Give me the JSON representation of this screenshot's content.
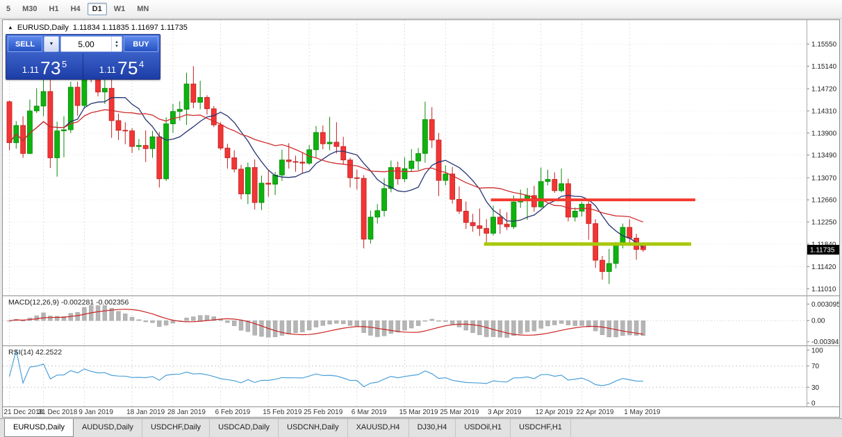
{
  "toolbar": {
    "timeframes": [
      {
        "label": "5",
        "active": false
      },
      {
        "label": "M30",
        "active": false
      },
      {
        "label": "H1",
        "active": false
      },
      {
        "label": "H4",
        "active": false
      },
      {
        "label": "D1",
        "active": true
      },
      {
        "label": "W1",
        "active": false
      },
      {
        "label": "MN",
        "active": false
      }
    ]
  },
  "chart": {
    "collapse_icon": "▲",
    "symbol_period": "EURUSD,Daily",
    "ohlc_text": "1.11834 1.11835 1.11697 1.11735"
  },
  "trade_panel": {
    "sell_label": "SELL",
    "buy_label": "BUY",
    "volume": "5.00",
    "dropdown_icon": "▼",
    "spinner_up_icon": "▲",
    "spinner_down_icon": "▼",
    "sell_price": {
      "prefix": "1.11",
      "big": "73",
      "sup": "5"
    },
    "buy_price": {
      "prefix": "1.11",
      "big": "75",
      "sup": "4"
    }
  },
  "price_axis": {
    "labels": [
      "1.15550",
      "1.15140",
      "1.14720",
      "1.14310",
      "1.13900",
      "1.13490",
      "1.13070",
      "1.12660",
      "1.12250",
      "1.11840",
      "1.11420",
      "1.11010"
    ],
    "current": "1.11735"
  },
  "macd": {
    "label": "MACD(12,26,9) -0.002281 -0.002356",
    "axis": [
      "0.003095",
      "0.00",
      "-0.003947"
    ]
  },
  "rsi": {
    "label": "RSI(14) 42.2522",
    "axis": [
      "100",
      "70",
      "30",
      "0"
    ]
  },
  "tabs": [
    {
      "label": "EURUSD,Daily",
      "active": true
    },
    {
      "label": "AUDUSD,Daily",
      "active": false
    },
    {
      "label": "USDCHF,Daily",
      "active": false
    },
    {
      "label": "USDCAD,Daily",
      "active": false
    },
    {
      "label": "USDCNH,Daily",
      "active": false
    },
    {
      "label": "XAUUSD,H4",
      "active": false
    },
    {
      "label": "DJ30,H4",
      "active": false
    },
    {
      "label": "USDOil,H1",
      "active": false
    },
    {
      "label": "USDCHF,H1",
      "active": false
    }
  ],
  "chart_data": {
    "type": "candlestick",
    "symbol": "EURUSD",
    "timeframe": "Daily",
    "price_range": [
      1.1095,
      1.1593
    ],
    "macd_range": [
      -0.0045,
      0.0043
    ],
    "rsi_range": [
      -5,
      105
    ],
    "style": {
      "up": "#0fb20f",
      "up_stroke": "#0a8a0a",
      "down": "#f23535",
      "down_stroke": "#c11f1f",
      "grid": "#dedede",
      "macd_bar": "#b5b5b5",
      "macd_signal": "#cc2222",
      "rsi_line": "#4aa0d8",
      "tag_bg": "#000000",
      "tag_text": "#ffffff"
    },
    "ma": [
      {
        "period": 9,
        "color": "#253271"
      },
      {
        "period": 18,
        "color": "#cf2b2b"
      }
    ],
    "macd_params": {
      "fast": 12,
      "slow": 26,
      "signal": 9
    },
    "rsi_params": {
      "period": 14,
      "levels": [
        70,
        30
      ]
    },
    "hlines": [
      {
        "price": 1.1266,
        "color": "#f23b2e",
        "thickness": 4,
        "start_index": 71,
        "end_index": 101
      },
      {
        "price": 1.1184,
        "color": "#a8c80a",
        "thickness": 5,
        "start_index": 70,
        "end_index": 100.4
      }
    ],
    "date_axis": {
      "labels": [
        "21 Dec 2018",
        "31 Dec 2018",
        "9 Jan 2019",
        "18 Jan 2019",
        "28 Jan 2019",
        "6 Feb 2019",
        "15 Feb 2019",
        "25 Feb 2019",
        "6 Mar 2019",
        "15 Mar 2019",
        "25 Mar 2019",
        "3 Apr 2019",
        "12 Apr 2019",
        "22 Apr 2019",
        "1 May 2019"
      ],
      "candle_indices": [
        0,
        5,
        11,
        18,
        24,
        31,
        38,
        44,
        51,
        58,
        64,
        71,
        78,
        84,
        91
      ]
    },
    "candles": [
      [
        1.1448,
        1.145,
        1.1358,
        1.1372
      ],
      [
        1.1372,
        1.1412,
        1.1361,
        1.1404
      ],
      [
        1.1404,
        1.1421,
        1.1344,
        1.1352
      ],
      [
        1.1352,
        1.1452,
        1.1351,
        1.1431
      ],
      [
        1.1431,
        1.1473,
        1.1427,
        1.144
      ],
      [
        1.144,
        1.1497,
        1.1421,
        1.1467
      ],
      [
        1.1467,
        1.1497,
        1.1325,
        1.1344
      ],
      [
        1.1344,
        1.1411,
        1.1309,
        1.1394
      ],
      [
        1.1394,
        1.1421,
        1.1345,
        1.1396
      ],
      [
        1.1396,
        1.1485,
        1.139,
        1.1475
      ],
      [
        1.1475,
        1.1485,
        1.1422,
        1.1441
      ],
      [
        1.1441,
        1.157,
        1.1435,
        1.1544
      ],
      [
        1.1544,
        1.1553,
        1.1484,
        1.1499
      ],
      [
        1.1499,
        1.1541,
        1.1458,
        1.1466
      ],
      [
        1.1466,
        1.1491,
        1.1444,
        1.1473
      ],
      [
        1.1473,
        1.149,
        1.1381,
        1.1413
      ],
      [
        1.1413,
        1.1426,
        1.1377,
        1.1395
      ],
      [
        1.1395,
        1.141,
        1.1369,
        1.1394
      ],
      [
        1.1394,
        1.1399,
        1.1353,
        1.1365
      ],
      [
        1.1365,
        1.1379,
        1.1358,
        1.1367
      ],
      [
        1.1367,
        1.1395,
        1.1336,
        1.1361
      ],
      [
        1.1361,
        1.1394,
        1.1344,
        1.1383
      ],
      [
        1.1383,
        1.1392,
        1.1289,
        1.1305
      ],
      [
        1.1305,
        1.1419,
        1.1301,
        1.1407
      ],
      [
        1.1407,
        1.1444,
        1.139,
        1.143
      ],
      [
        1.143,
        1.1449,
        1.1413,
        1.1434
      ],
      [
        1.1434,
        1.1502,
        1.1405,
        1.1481
      ],
      [
        1.1481,
        1.1514,
        1.1436,
        1.1447
      ],
      [
        1.1447,
        1.1487,
        1.1434,
        1.1456
      ],
      [
        1.1456,
        1.146,
        1.1424,
        1.1435
      ],
      [
        1.1435,
        1.144,
        1.1401,
        1.1405
      ],
      [
        1.1405,
        1.141,
        1.1358,
        1.1362
      ],
      [
        1.1362,
        1.137,
        1.1324,
        1.1344
      ],
      [
        1.1344,
        1.1358,
        1.1317,
        1.1323
      ],
      [
        1.1323,
        1.1331,
        1.1267,
        1.1277
      ],
      [
        1.1277,
        1.1335,
        1.1258,
        1.1326
      ],
      [
        1.1326,
        1.1341,
        1.1248,
        1.1261
      ],
      [
        1.1261,
        1.1311,
        1.1247,
        1.1297
      ],
      [
        1.1297,
        1.132,
        1.1272,
        1.1295
      ],
      [
        1.1295,
        1.1318,
        1.1275,
        1.1312
      ],
      [
        1.1312,
        1.1359,
        1.1301,
        1.134
      ],
      [
        1.134,
        1.1371,
        1.1324,
        1.1337
      ],
      [
        1.1337,
        1.1348,
        1.1318,
        1.1336
      ],
      [
        1.1336,
        1.1354,
        1.1315,
        1.1334
      ],
      [
        1.1334,
        1.1368,
        1.1331,
        1.1359
      ],
      [
        1.1359,
        1.1403,
        1.1345,
        1.1391
      ],
      [
        1.1391,
        1.1404,
        1.136,
        1.137
      ],
      [
        1.137,
        1.142,
        1.1358,
        1.1373
      ],
      [
        1.1373,
        1.141,
        1.1352,
        1.1365
      ],
      [
        1.1365,
        1.1383,
        1.1331,
        1.134
      ],
      [
        1.134,
        1.1344,
        1.1289,
        1.1307
      ],
      [
        1.1307,
        1.1322,
        1.1285,
        1.1306
      ],
      [
        1.1306,
        1.1312,
        1.1176,
        1.1193
      ],
      [
        1.1193,
        1.1246,
        1.1185,
        1.1234
      ],
      [
        1.1234,
        1.1258,
        1.1222,
        1.1246
      ],
      [
        1.1246,
        1.1306,
        1.1235,
        1.1287
      ],
      [
        1.1287,
        1.1339,
        1.128,
        1.1326
      ],
      [
        1.1326,
        1.1337,
        1.1294,
        1.1305
      ],
      [
        1.1305,
        1.1345,
        1.1299,
        1.1324
      ],
      [
        1.1324,
        1.136,
        1.1318,
        1.1338
      ],
      [
        1.1338,
        1.1362,
        1.1321,
        1.1352
      ],
      [
        1.1352,
        1.1448,
        1.1335,
        1.1415
      ],
      [
        1.1415,
        1.1438,
        1.1362,
        1.1377
      ],
      [
        1.1377,
        1.139,
        1.1273,
        1.1302
      ],
      [
        1.1302,
        1.133,
        1.1293,
        1.1314
      ],
      [
        1.1314,
        1.1327,
        1.1259,
        1.1267
      ],
      [
        1.1267,
        1.1291,
        1.124,
        1.1245
      ],
      [
        1.1245,
        1.1263,
        1.1212,
        1.1224
      ],
      [
        1.1224,
        1.124,
        1.1207,
        1.1218
      ],
      [
        1.1218,
        1.125,
        1.1199,
        1.1213
      ],
      [
        1.1213,
        1.123,
        1.1183,
        1.1204
      ],
      [
        1.1204,
        1.1255,
        1.12,
        1.1234
      ],
      [
        1.1234,
        1.1249,
        1.1203,
        1.1221
      ],
      [
        1.1221,
        1.1243,
        1.121,
        1.1216
      ],
      [
        1.1216,
        1.1274,
        1.1212,
        1.1262
      ],
      [
        1.1262,
        1.1285,
        1.1251,
        1.1264
      ],
      [
        1.1264,
        1.1288,
        1.1229,
        1.1274
      ],
      [
        1.1274,
        1.1292,
        1.1244,
        1.1253
      ],
      [
        1.1253,
        1.1326,
        1.1251,
        1.13
      ],
      [
        1.13,
        1.1322,
        1.1293,
        1.1304
      ],
      [
        1.1304,
        1.1317,
        1.1279,
        1.1283
      ],
      [
        1.1283,
        1.1324,
        1.128,
        1.1296
      ],
      [
        1.1296,
        1.1305,
        1.1226,
        1.1234
      ],
      [
        1.1234,
        1.1252,
        1.1226,
        1.1245
      ],
      [
        1.1245,
        1.1262,
        1.1235,
        1.1258
      ],
      [
        1.1258,
        1.1265,
        1.1192,
        1.1222
      ],
      [
        1.1222,
        1.123,
        1.114,
        1.1154
      ],
      [
        1.1154,
        1.1162,
        1.1118,
        1.1133
      ],
      [
        1.1133,
        1.1175,
        1.111,
        1.1148
      ],
      [
        1.1148,
        1.1188,
        1.1139,
        1.1184
      ],
      [
        1.1184,
        1.1222,
        1.1176,
        1.1215
      ],
      [
        1.1215,
        1.123,
        1.1187,
        1.1195
      ],
      [
        1.1195,
        1.1203,
        1.1155,
        1.1174
      ],
      [
        1.11834,
        1.11835,
        1.11697,
        1.11735
      ]
    ]
  }
}
